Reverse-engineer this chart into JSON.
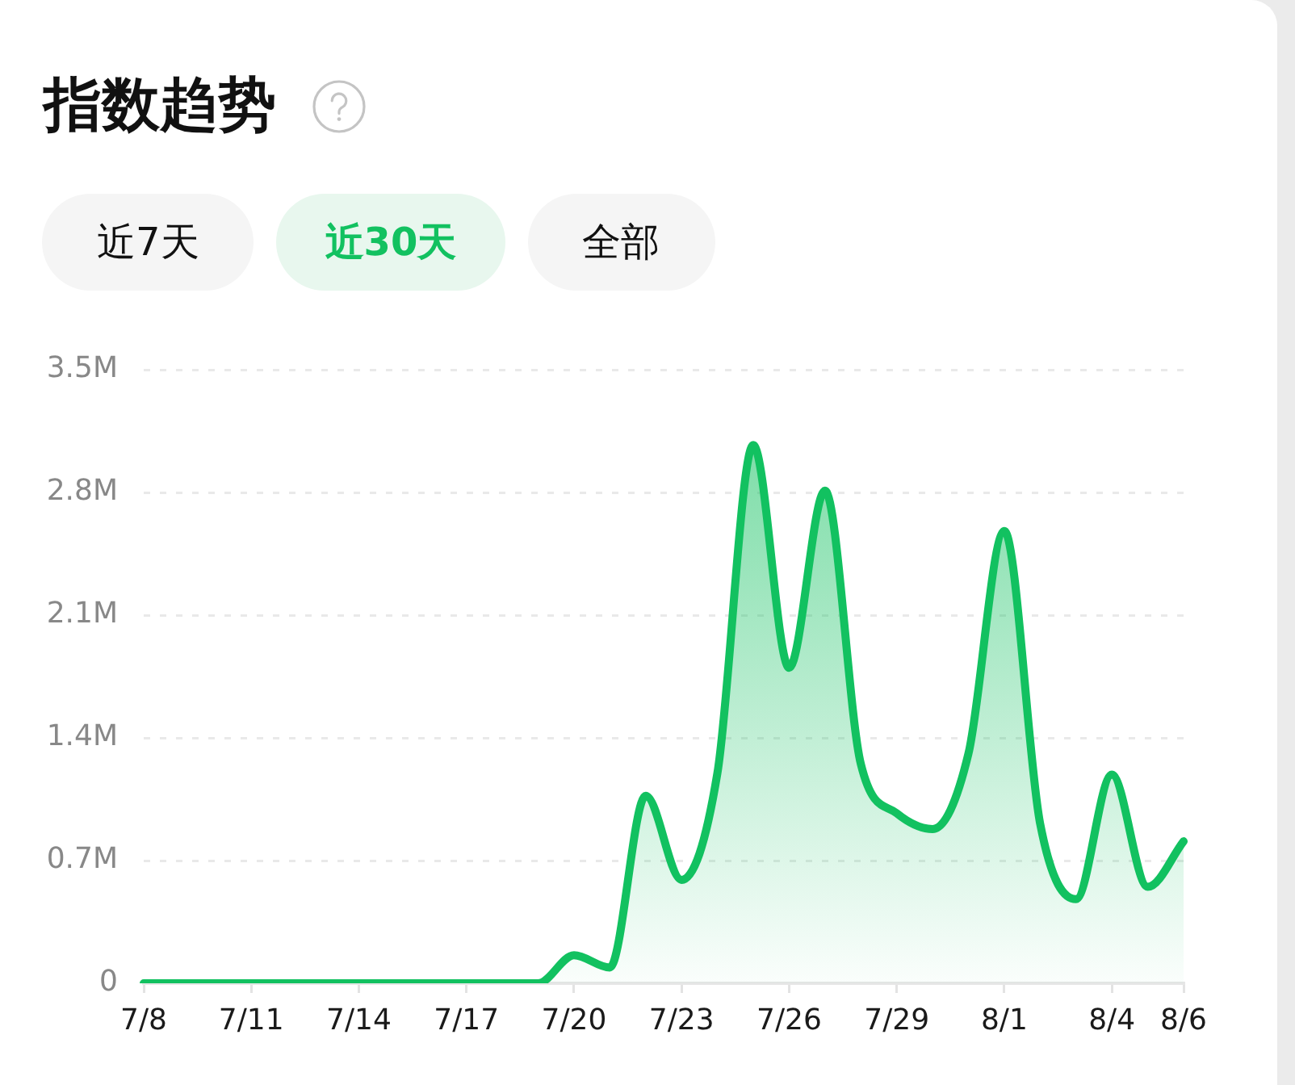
{
  "chart_data": {
    "type": "area",
    "title": "指数趋势",
    "annotations": [
      "近7天",
      "近30天",
      "全部"
    ],
    "categories": [
      "7/8",
      null,
      null,
      "7/11",
      null,
      null,
      "7/14",
      null,
      null,
      "7/17",
      null,
      null,
      "7/20",
      null,
      null,
      "7/23",
      null,
      null,
      "7/26",
      null,
      null,
      "7/29",
      null,
      null,
      "8/1",
      null,
      null,
      "8/4",
      null,
      "8/6"
    ],
    "values": [
      0,
      0,
      0,
      0,
      0,
      0,
      0,
      0,
      0,
      0,
      0,
      0,
      0.16,
      0.09,
      1.07,
      0.59,
      1.2,
      3.07,
      1.8,
      2.81,
      1.25,
      0.97,
      0.88,
      1.31,
      2.58,
      0.91,
      0.48,
      1.19,
      0.55,
      0.81
    ],
    "color": "#12c160",
    "ylim": [
      0,
      3.5
    ],
    "yticks": [
      0,
      {
        "value": 0.7,
        "label": "0.7M"
      },
      {
        "value": 1.4,
        "label": "1.4M"
      },
      {
        "value": 2.1,
        "label": "2.1M"
      },
      {
        "value": 2.8,
        "label": "2.8M"
      },
      {
        "value": 3.5,
        "label": "3.5M"
      }
    ],
    "grid": "y"
  }
}
